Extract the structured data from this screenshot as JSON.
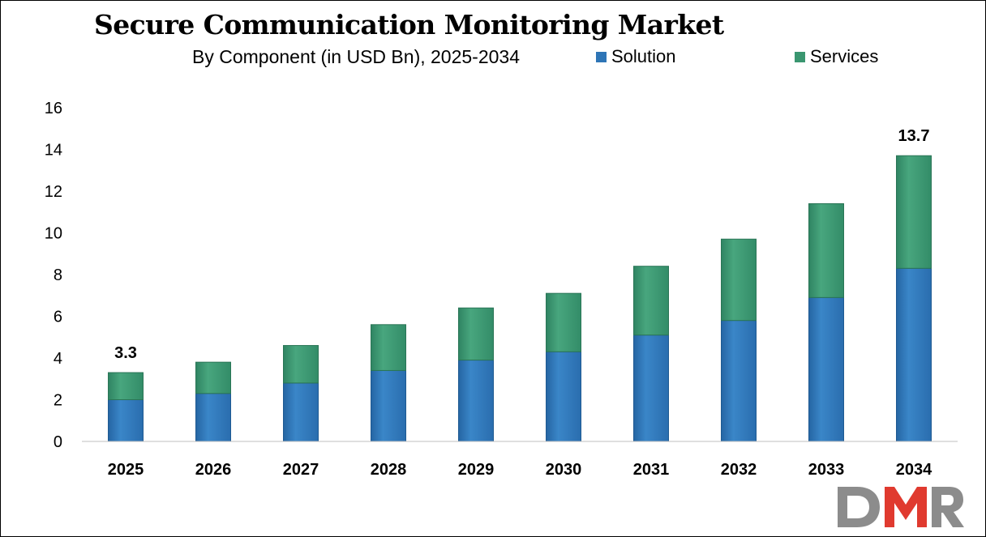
{
  "chart_data": {
    "type": "bar",
    "stacked": true,
    "title": "Secure Communication Monitoring Market",
    "subtitle": "By Component (in USD Bn), 2025-2034",
    "categories": [
      "2025",
      "2026",
      "2027",
      "2028",
      "2029",
      "2030",
      "2031",
      "2032",
      "2033",
      "2034"
    ],
    "series": [
      {
        "name": "Solution",
        "color": "#2E75B6",
        "values": [
          2.0,
          2.3,
          2.8,
          3.4,
          3.9,
          4.3,
          5.1,
          5.8,
          6.9,
          8.3
        ]
      },
      {
        "name": "Services",
        "color": "#3A9670",
        "values": [
          1.3,
          1.5,
          1.8,
          2.2,
          2.5,
          2.8,
          3.3,
          3.9,
          4.5,
          5.4
        ]
      }
    ],
    "data_labels": [
      {
        "category": "2025",
        "text": "3.3"
      },
      {
        "category": "2034",
        "text": "13.7"
      }
    ],
    "xlabel": "",
    "ylabel": "",
    "ylim": [
      0,
      16
    ],
    "yticks": [
      "0",
      "2",
      "4",
      "6",
      "8",
      "10",
      "12",
      "14",
      "16"
    ],
    "grid": false,
    "legend_position": "top-right"
  },
  "logo": {
    "text": "DMR",
    "colors": [
      "#8C8C8C",
      "#E03A2F"
    ]
  }
}
